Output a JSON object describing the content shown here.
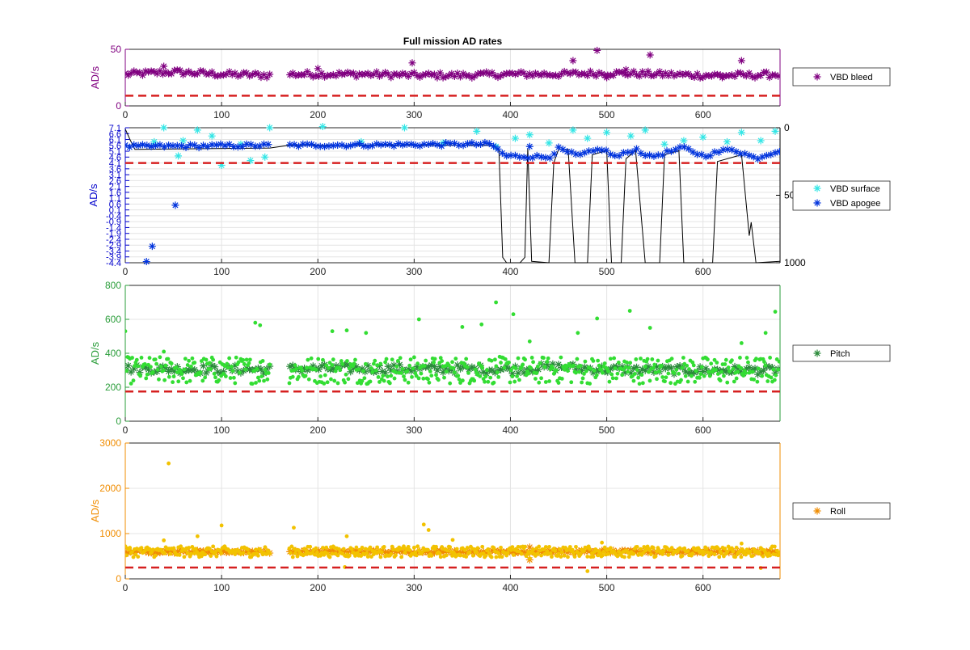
{
  "figure": {
    "title": "Full mission AD rates"
  },
  "chart_data": [
    {
      "id": "vbd-bleed",
      "type": "scatter",
      "title": "Full mission AD rates",
      "xlabel": "",
      "ylabel": "AD/s",
      "xlim": [
        0,
        680
      ],
      "ylim": [
        0,
        50
      ],
      "xticks": [
        0,
        100,
        200,
        300,
        400,
        500,
        600
      ],
      "yticks": [
        0,
        50
      ],
      "grid": true,
      "axis_color": "#800080",
      "legend": {
        "placement": "right",
        "entries": [
          "VBD bleed"
        ]
      },
      "threshold": {
        "value": 9,
        "color": "#d62020"
      },
      "series": [
        {
          "name": "VBD bleed",
          "color": "#800080",
          "marker": "asterisk",
          "gaps": [
            [
              150,
              170
            ]
          ],
          "trend": [
            [
              0,
              28
            ],
            [
              50,
              30
            ],
            [
              100,
              28
            ],
            [
              150,
              27
            ],
            [
              170,
              28
            ],
            [
              250,
              28
            ],
            [
              300,
              27
            ],
            [
              350,
              27
            ],
            [
              400,
              28
            ],
            [
              450,
              28
            ],
            [
              500,
              29
            ],
            [
              550,
              28
            ],
            [
              600,
              27
            ],
            [
              650,
              27
            ],
            [
              680,
              28
            ]
          ],
          "spread": 2.5,
          "outliers": [
            [
              490,
              49
            ],
            [
              545,
              45
            ],
            [
              465,
              40
            ],
            [
              298,
              38
            ],
            [
              640,
              40
            ],
            [
              500,
              25
            ],
            [
              520,
              32
            ],
            [
              620,
              25
            ],
            [
              40,
              35
            ],
            [
              200,
              33
            ]
          ]
        }
      ]
    },
    {
      "id": "vbd",
      "type": "scatter",
      "xlabel": "",
      "ylabel": "AD/s",
      "xlim": [
        0,
        680
      ],
      "ylim": [
        -4.4,
        7.1
      ],
      "xticks": [
        0,
        100,
        200,
        300,
        400,
        500,
        600
      ],
      "yticks": [
        7.1,
        6.6,
        6.1,
        5.6,
        5.1,
        4.6,
        4.1,
        3.6,
        3.1,
        2.6,
        2.1,
        1.6,
        1.1,
        0.6,
        0.1,
        -0.4,
        -0.9,
        -1.4,
        -1.9,
        -2.4,
        -2.9,
        -3.4,
        -3.9,
        -4.4
      ],
      "ytick_labels": [
        "7.1",
        "6.6",
        "6.1",
        "5.6",
        "5.1",
        "4.6",
        "4.1",
        "3.6",
        "3.1",
        "2.6",
        "2.1",
        "1.6",
        "1.1",
        "0.6",
        "0.1",
        "-0.4",
        "-0.9",
        "-1.4",
        "-1.9",
        "-2.4",
        "-2.9",
        "-3.4",
        "-3.9",
        "-4.4"
      ],
      "grid": true,
      "axis_color": "#0000cc",
      "right_axis": {
        "ylim": [
          0,
          1000
        ],
        "reversed": true,
        "ticks": [
          0,
          500,
          1000
        ],
        "color": "#000000"
      },
      "legend": {
        "placement": "right",
        "entries": [
          "VBD surface",
          "VBD apogee"
        ]
      },
      "threshold": {
        "value": 4.1,
        "color": "#d62020"
      },
      "series": [
        {
          "name": "VBD surface",
          "color": "#33e6e6",
          "marker": "asterisk",
          "points": [
            [
              40,
              7.1
            ],
            [
              100,
              3.9
            ],
            [
              60,
              6.0
            ],
            [
              90,
              6.4
            ],
            [
              75,
              6.9
            ],
            [
              145,
              4.6
            ],
            [
              130,
              4.3
            ],
            [
              150,
              7.1
            ],
            [
              205,
              7.2
            ],
            [
              290,
              7.1
            ],
            [
              365,
              6.8
            ],
            [
              405,
              6.2
            ],
            [
              420,
              6.5
            ],
            [
              440,
              5.8
            ],
            [
              465,
              6.9
            ],
            [
              480,
              6.2
            ],
            [
              500,
              6.7
            ],
            [
              525,
              6.4
            ],
            [
              540,
              6.9
            ],
            [
              560,
              5.7
            ],
            [
              580,
              6.0
            ],
            [
              600,
              6.3
            ],
            [
              625,
              5.9
            ],
            [
              640,
              6.7
            ],
            [
              660,
              6.0
            ],
            [
              675,
              6.8
            ],
            [
              30,
              5.9
            ],
            [
              55,
              4.7
            ],
            [
              120,
              5.7
            ],
            [
              245,
              5.9
            ],
            [
              330,
              5.8
            ],
            [
              385,
              5.5
            ]
          ]
        },
        {
          "name": "VBD apogee",
          "color": "#0033dd",
          "marker": "asterisk",
          "gaps": [
            [
              150,
              170
            ]
          ],
          "trend_points": [
            [
              0,
              5.5
            ],
            [
              150,
              5.6
            ],
            [
              170,
              5.6
            ],
            [
              380,
              5.7
            ],
            [
              395,
              4.7
            ],
            [
              440,
              4.6
            ],
            [
              450,
              5.3
            ],
            [
              470,
              4.7
            ],
            [
              495,
              5.3
            ],
            [
              510,
              4.6
            ],
            [
              530,
              5.3
            ],
            [
              545,
              4.6
            ],
            [
              580,
              5.4
            ],
            [
              600,
              4.7
            ],
            [
              630,
              5.3
            ],
            [
              655,
              4.5
            ],
            [
              680,
              5.2
            ]
          ],
          "outliers": [
            [
              22,
              -4.3
            ],
            [
              28,
              -3.0
            ],
            [
              52,
              0.5
            ],
            [
              420,
              5.5
            ]
          ]
        }
      ],
      "depth_trace": {
        "name": "depth",
        "axis": "right",
        "color": "#000000",
        "points": [
          [
            0,
            10
          ],
          [
            5,
            90
          ],
          [
            10,
            160
          ],
          [
            150,
            150
          ],
          [
            170,
            130
          ],
          [
            380,
            130
          ],
          [
            388,
            160
          ],
          [
            392,
            960
          ],
          [
            396,
            1000
          ],
          [
            410,
            1000
          ],
          [
            415,
            960
          ],
          [
            418,
            150
          ],
          [
            422,
            990
          ],
          [
            440,
            1000
          ],
          [
            445,
            260
          ],
          [
            450,
            160
          ],
          [
            460,
            160
          ],
          [
            467,
            1000
          ],
          [
            480,
            1000
          ],
          [
            485,
            200
          ],
          [
            500,
            170
          ],
          [
            505,
            1000
          ],
          [
            515,
            1000
          ],
          [
            520,
            230
          ],
          [
            530,
            170
          ],
          [
            540,
            1000
          ],
          [
            555,
            1000
          ],
          [
            560,
            200
          ],
          [
            575,
            170
          ],
          [
            580,
            1000
          ],
          [
            610,
            1000
          ],
          [
            615,
            250
          ],
          [
            640,
            200
          ],
          [
            648,
            800
          ],
          [
            650,
            700
          ],
          [
            655,
            1000
          ],
          [
            680,
            990
          ]
        ]
      }
    },
    {
      "id": "pitch",
      "type": "scatter",
      "xlabel": "",
      "ylabel": "AD/s",
      "xlim": [
        0,
        680
      ],
      "ylim": [
        0,
        800
      ],
      "xticks": [
        0,
        100,
        200,
        300,
        400,
        500,
        600
      ],
      "yticks": [
        0,
        200,
        400,
        600,
        800
      ],
      "grid": true,
      "axis_color": "#2a9d3a",
      "legend": {
        "placement": "right",
        "entries": [
          "Pitch"
        ]
      },
      "threshold": {
        "value": 175,
        "color": "#d62020"
      },
      "series": [
        {
          "name": "Pitch",
          "color": "#2a8a3a",
          "marker": "asterisk",
          "gaps": [
            [
              150,
              170
            ]
          ],
          "trend": [
            [
              0,
              310
            ],
            [
              100,
              305
            ],
            [
              150,
              305
            ],
            [
              170,
              310
            ],
            [
              300,
              310
            ],
            [
              400,
              305
            ],
            [
              450,
              320
            ],
            [
              500,
              305
            ],
            [
              600,
              300
            ],
            [
              680,
              300
            ]
          ],
          "spread": 25
        },
        {
          "name": "",
          "color": "#33dd33",
          "marker": "dot",
          "gaps": [
            [
              150,
              170
            ]
          ],
          "trend": [
            [
              0,
              300
            ],
            [
              150,
              300
            ],
            [
              170,
              300
            ],
            [
              680,
              300
            ]
          ],
          "spread": 80,
          "outliers": [
            [
              385,
              700
            ],
            [
              403,
              630
            ],
            [
              524,
              650
            ],
            [
              675,
              645
            ],
            [
              305,
              600
            ],
            [
              490,
              605
            ],
            [
              135,
              580
            ],
            [
              140,
              565
            ],
            [
              215,
              530
            ],
            [
              230,
              535
            ],
            [
              350,
              555
            ],
            [
              370,
              570
            ],
            [
              545,
              550
            ],
            [
              665,
              520
            ],
            [
              250,
              520
            ],
            [
              470,
              520
            ],
            [
              420,
              470
            ],
            [
              640,
              460
            ],
            [
              0,
              530
            ],
            [
              40,
              410
            ]
          ]
        }
      ]
    },
    {
      "id": "roll",
      "type": "scatter",
      "xlabel": "",
      "ylabel": "AD/s",
      "xlim": [
        0,
        680
      ],
      "ylim": [
        0,
        3000
      ],
      "xticks": [
        0,
        100,
        200,
        300,
        400,
        500,
        600
      ],
      "yticks": [
        0,
        1000,
        2000,
        3000
      ],
      "grid": true,
      "axis_color": "#f08c00",
      "legend": {
        "placement": "right",
        "entries": [
          "Roll"
        ]
      },
      "threshold": {
        "value": 250,
        "color": "#d62020"
      },
      "series": [
        {
          "name": "Roll",
          "color": "#f08c00",
          "marker": "asterisk",
          "gaps": [
            [
              150,
              170
            ]
          ],
          "trend": [
            [
              0,
              600
            ],
            [
              150,
              600
            ],
            [
              170,
              600
            ],
            [
              420,
              600
            ],
            [
              680,
              600
            ]
          ],
          "spread": 30,
          "outliers": [
            [
              420,
              700
            ],
            [
              420,
              420
            ]
          ]
        },
        {
          "name": "",
          "color": "#f2c200",
          "marker": "dot",
          "gaps": [
            [
              150,
              170
            ]
          ],
          "trend": [
            [
              0,
              600
            ],
            [
              680,
              600
            ]
          ],
          "spread": 120,
          "outliers": [
            [
              45,
              2550
            ],
            [
              100,
              1180
            ],
            [
              310,
              1200
            ],
            [
              175,
              1130
            ],
            [
              315,
              1080
            ],
            [
              75,
              940
            ],
            [
              230,
              940
            ],
            [
              495,
              800
            ],
            [
              640,
              780
            ],
            [
              40,
              850
            ],
            [
              480,
              170
            ],
            [
              660,
              240
            ],
            [
              228,
              260
            ],
            [
              340,
              860
            ],
            [
              420,
              450
            ]
          ]
        }
      ]
    }
  ]
}
